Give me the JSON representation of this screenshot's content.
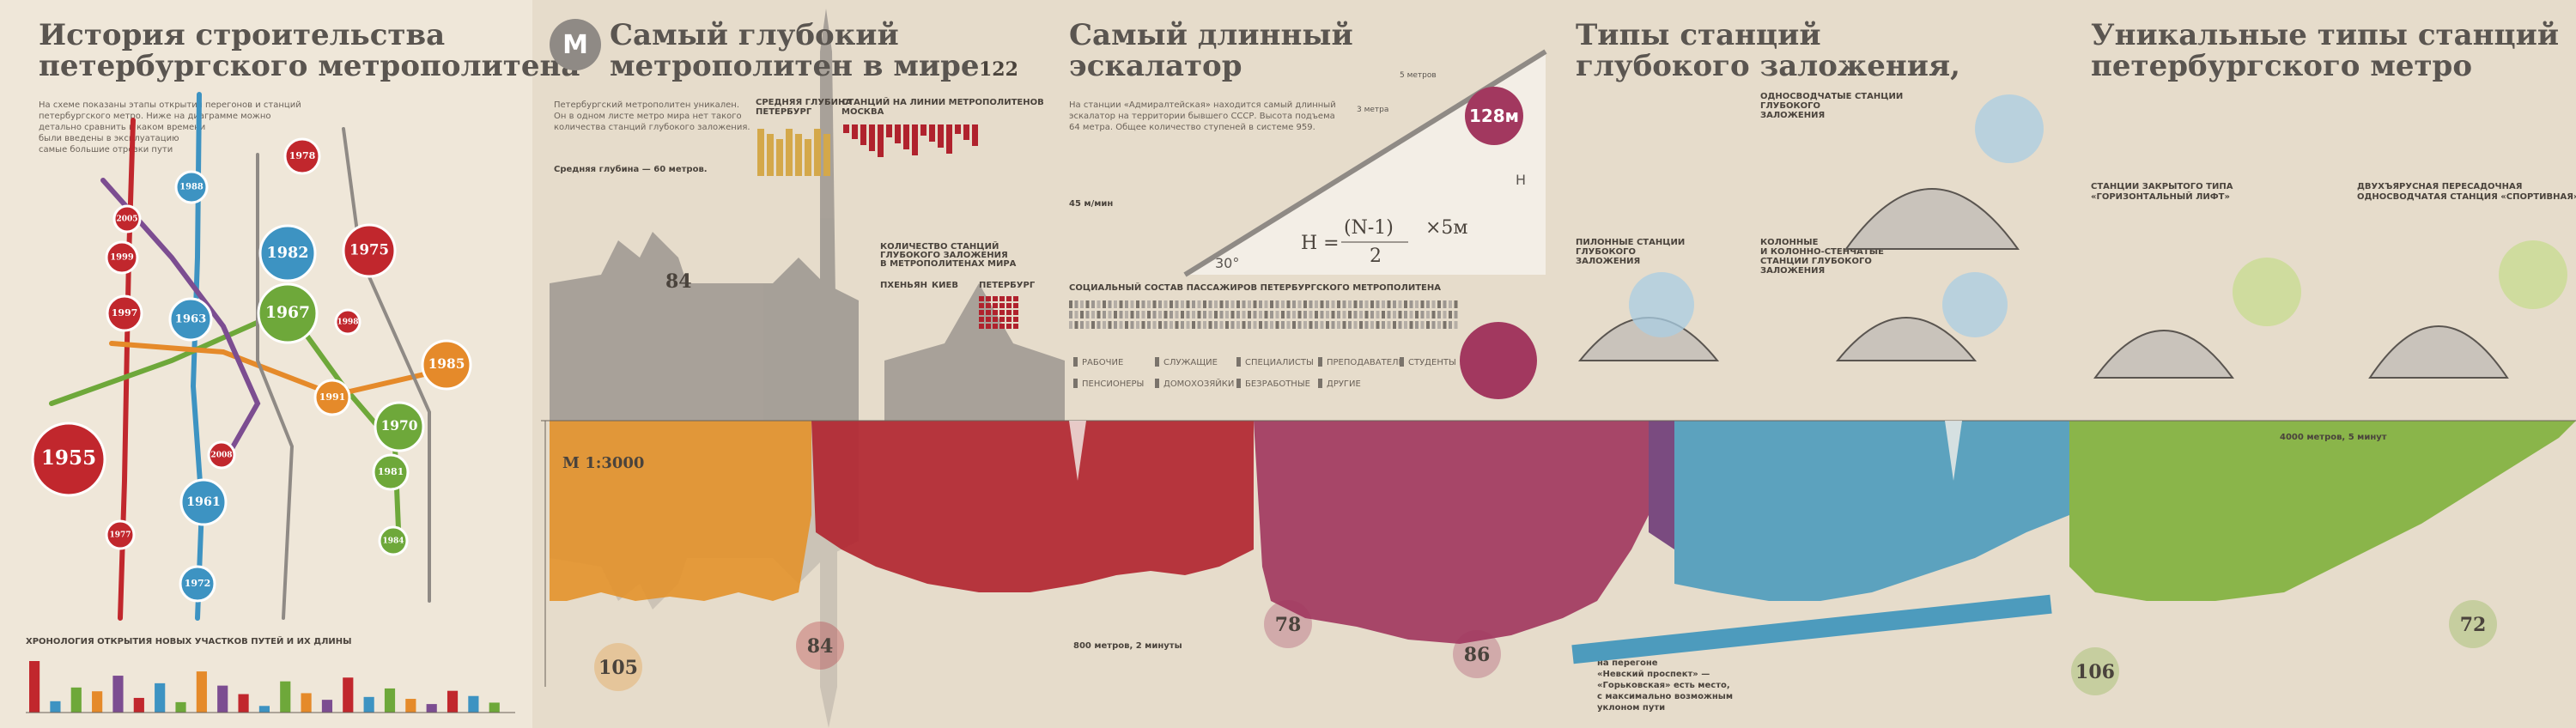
{
  "history": {
    "title": [
      "История строительства",
      "петербургского метрополитена"
    ],
    "intro": [
      "На схеме показаны этапы открытия перегонов и станций",
      "петербургского метро. Ниже на диаграмме можно",
      "детально сравнить в каком времени",
      "были введены в эксплуатацию",
      "самые большие отрезки пути"
    ],
    "years": [
      "1955",
      "1961",
      "1963",
      "1967",
      "1972",
      "1975",
      "1977",
      "1978",
      "1982",
      "1985",
      "1991",
      "1970",
      "1981",
      "1984",
      "1997",
      "1999",
      "2005",
      "1988",
      "2008",
      "1998"
    ],
    "chronology": {
      "title": "ХРОНОЛОГИЯ ОТКРЫТИЯ НОВЫХ УЧАСТКОВ ПУТЕЙ И ИХ ДЛИНЫ",
      "values": [
        10.9,
        2.4,
        5.3,
        4.5,
        7.8,
        3.1,
        6.2,
        2.2,
        8.7,
        5.7,
        3.9,
        1.4,
        6.6,
        4.1,
        2.7,
        7.4,
        3.3,
        5.1,
        2.9,
        1.8,
        4.6,
        3.5,
        2.1
      ]
    }
  },
  "deepest": {
    "title": [
      "Самый глубокий",
      "метрополитен в мире"
    ],
    "logo": "М",
    "count": 122,
    "intro": [
      "Петербургский метрополитен уникален.",
      "Он в одном листе метро мира нет такого",
      "количества станций глубокого заложения."
    ],
    "avg_depth": "Средняя глубина — 60 метров.",
    "col_spb": [
      "СРЕДНЯЯ ГЛУБИНА",
      "ПЕТЕРБУРГ"
    ],
    "col_msk": [
      "СТАНЦИЙ НА ЛИНИИ МЕТРОПОЛИТЕНОВ",
      "МОСКВА"
    ],
    "deep_title": [
      "КОЛИЧЕСТВО СТАНЦИЙ",
      "ГЛУБОКОГО ЗАЛОЖЕНИЯ",
      "В МЕТРОПОЛИТЕНАХ МИРА"
    ],
    "cities": [
      "ПХЕНЬЯН",
      "КИЕВ",
      "ПЕТЕРБУРГ"
    ],
    "spire": 84,
    "scale": "М 1:3000"
  },
  "escalator": {
    "title": [
      "Самый длинный",
      "эскалатор"
    ],
    "length": "128м",
    "angle": "30°",
    "h": "H",
    "formula": [
      "H =",
      "(N-1)",
      "2",
      "×5м"
    ],
    "steps": [
      "3 метра",
      "5 метров"
    ],
    "speed": "45 м/мин",
    "intro": [
      "На станции «Адмиралтейская» находится самый длинный",
      "эскалатор на территории бывшего СССР. Высота подъема",
      "64 метра. Общее количество ступеней в системе 959."
    ],
    "social_title": "СОЦИАЛЬНЫЙ СОСТАВ ПАССАЖИРОВ ПЕТЕРБУРГСКОГО МЕТРОПОЛИТЕНА",
    "legend": [
      "РАБОЧИЕ",
      "СЛУЖАЩИЕ",
      "СПЕЦИАЛИСТЫ",
      "ПРЕПОДАВАТЕЛИ",
      "СТУДЕНТЫ",
      "ПЕНСИОНЕРЫ",
      "ДОМОХОЗЯЙКИ",
      "БЕЗРАБОТНЫЕ",
      "ДРУГИЕ"
    ]
  },
  "types": {
    "title": [
      "Типы станций",
      "глубокого заложения,"
    ],
    "single_vault": [
      "ОДНОСВОДЧАТЫЕ СТАНЦИИ",
      "ГЛУБОКОГО",
      "ЗАЛОЖЕНИЯ"
    ],
    "column": [
      "КОЛОННЫЕ",
      "И КОЛОННО-СТЕНЧАТЫЕ",
      "СТАНЦИИ ГЛУБОКОГО",
      "ЗАЛОЖЕНИЯ"
    ],
    "pylon": [
      "ПИЛОННЫЕ СТАНЦИИ",
      "ГЛУБОКОГО",
      "ЗАЛОЖЕНИЯ"
    ]
  },
  "unique": {
    "title": [
      "Уникальные типы станций",
      "петербургского метро"
    ],
    "closed": [
      "СТАНЦИИ ЗАКРЫТОГО ТИПА",
      "«ГОРИЗОНТАЛЬНЫЙ ЛИФТ»"
    ],
    "double": [
      "ДВУХЪЯРУСНАЯ ПЕРЕСАДОЧНАЯ",
      "ОДНОСВОДЧАТАЯ СТАНЦИЯ «СПОРТИВНАЯ»"
    ]
  },
  "profile": {
    "depths": [
      105,
      84,
      78,
      86,
      106,
      72
    ],
    "run1": "800 метров, 2 минуты",
    "run2": "4000 метров, 5 минут",
    "slope": [
      "на перегоне",
      "«Невский проспект» —",
      "«Горьковская» есть место,",
      "с максимально возможным",
      "уклоном пути"
    ]
  }
}
